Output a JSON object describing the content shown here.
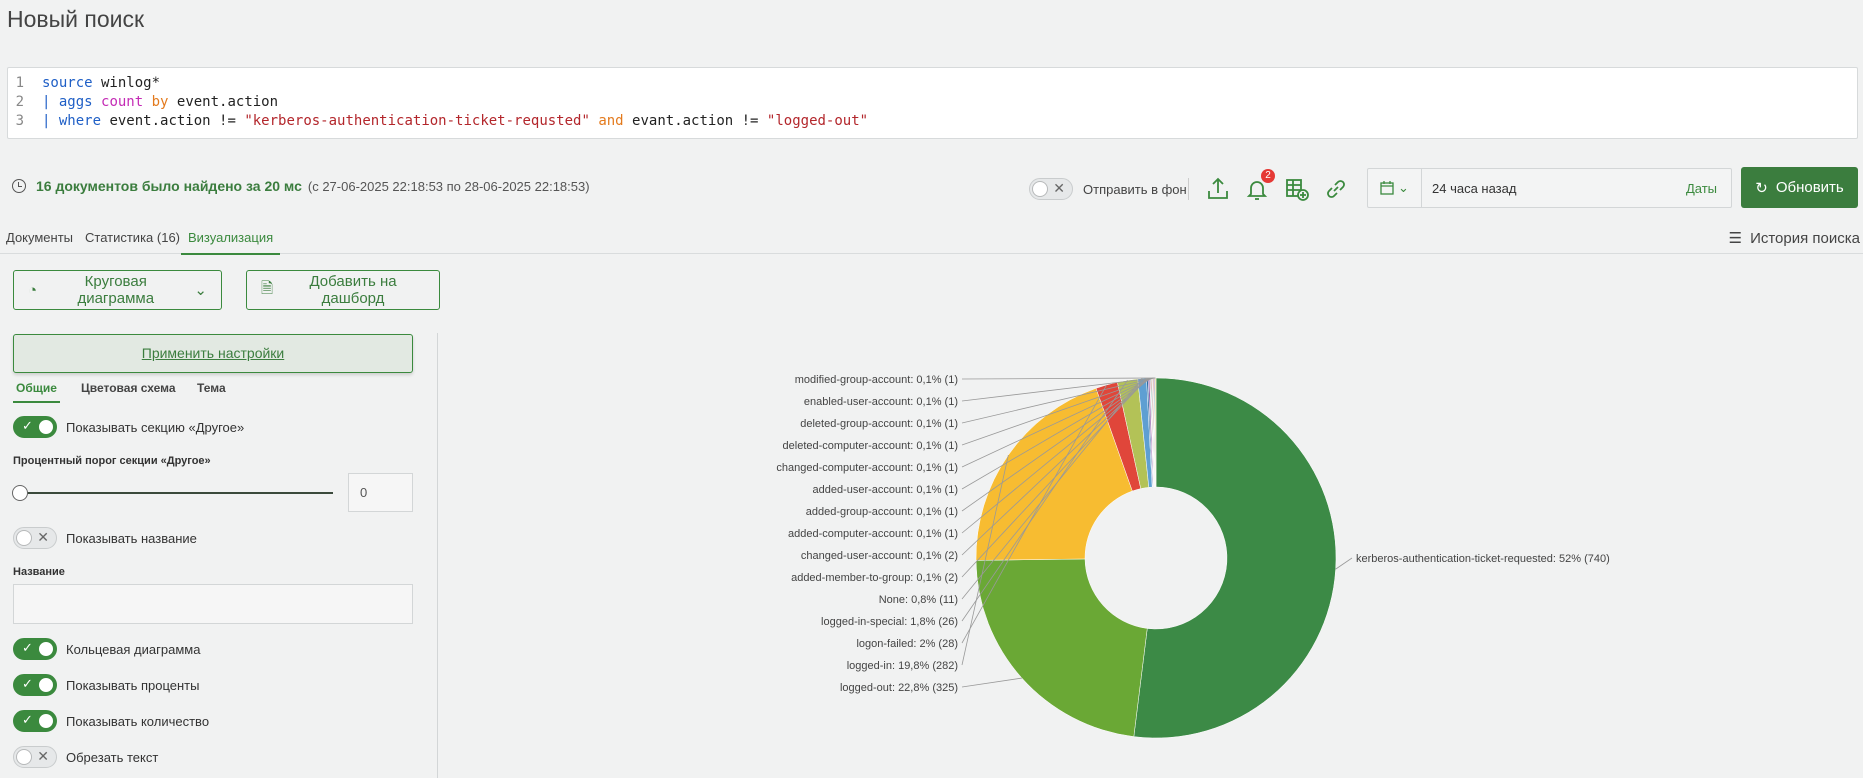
{
  "page": {
    "title": "Новый поиск"
  },
  "query": {
    "lines": [
      {
        "num": "1",
        "parts": [
          {
            "t": "source",
            "c": "kw-blue"
          },
          {
            "t": " winlog*",
            "c": "plain"
          }
        ]
      },
      {
        "num": "2",
        "parts": [
          {
            "t": "| ",
            "c": "pipe"
          },
          {
            "t": "aggs",
            "c": "kw-blue"
          },
          {
            "t": " ",
            "c": "plain"
          },
          {
            "t": "count",
            "c": "kw-mag"
          },
          {
            "t": " ",
            "c": "plain"
          },
          {
            "t": "by",
            "c": "kw-org"
          },
          {
            "t": " event.action",
            "c": "plain"
          }
        ]
      },
      {
        "num": "3",
        "parts": [
          {
            "t": "| ",
            "c": "pipe"
          },
          {
            "t": "where",
            "c": "kw-blue"
          },
          {
            "t": " event.action != ",
            "c": "plain"
          },
          {
            "t": "\"kerberos-authentication-ticket-requsted\"",
            "c": "str"
          },
          {
            "t": " ",
            "c": "plain"
          },
          {
            "t": "and",
            "c": "kw-org"
          },
          {
            "t": " evant.action != ",
            "c": "plain"
          },
          {
            "t": "\"logged-out\"",
            "c": "str"
          }
        ]
      }
    ]
  },
  "status": {
    "found": "16 документов было найдено за 20 мс",
    "range": "(с 27-06-2025 22:18:53 по 28-06-2025 22:18:53)"
  },
  "toolbar": {
    "send_background": "Отправить в фон",
    "notifications_count": "2",
    "date_value": "24 часа назад",
    "date_link": "Даты",
    "refresh": "Обновить"
  },
  "tabs": {
    "documents": "Документы",
    "statistics": "Статистика (16)",
    "visualization": "Визуализация",
    "history": "История поиска"
  },
  "viz": {
    "chart_type": "Круговая диаграмма",
    "add_dashboard": "Добавить на дашборд",
    "apply": "Применить настройки",
    "subtabs": {
      "general": "Общие",
      "colors": "Цветовая схема",
      "theme": "Тема"
    },
    "show_other": "Показывать секцию «Другое»",
    "threshold_label": "Процентный порог секции «Другое»",
    "threshold_value": "0",
    "show_name": "Показывать название",
    "name_label": "Название",
    "donut": "Кольцевая диаграмма",
    "show_percent": "Показывать проценты",
    "show_count": "Показывать количество",
    "trim_text": "Обрезать текст"
  },
  "chart_data": {
    "type": "pie",
    "donut": true,
    "slices": [
      {
        "label": "kerberos-authentication-ticket-requested",
        "value": 740,
        "text": "kerberos-authentication-ticket-requested: 52% (740)",
        "color": "#3c8a46"
      },
      {
        "label": "logged-out",
        "value": 325,
        "text": "logged-out: 22,8% (325)",
        "color": "#6aa835"
      },
      {
        "label": "logged-in",
        "value": 282,
        "text": "logged-in: 19,8% (282)",
        "color": "#f7bc31"
      },
      {
        "label": "logon-failed",
        "value": 28,
        "text": "logon-failed: 2% (28)",
        "color": "#e0463a"
      },
      {
        "label": "logged-in-special",
        "value": 26,
        "text": "logged-in-special: 1,8% (26)",
        "color": "#b3c257"
      },
      {
        "label": "None",
        "value": 11,
        "text": "None: 0,8% (11)",
        "color": "#5e9fd2"
      },
      {
        "label": "added-member-to-group",
        "value": 2,
        "text": "added-member-to-group: 0,1% (2)",
        "color": "#2c6aa0"
      },
      {
        "label": "changed-user-account",
        "value": 2,
        "text": "changed-user-account: 0,1% (2)",
        "color": "#8b5aa8"
      },
      {
        "label": "added-computer-account",
        "value": 1,
        "text": "added-computer-account: 0,1% (1)",
        "color": "#d35f8c"
      },
      {
        "label": "added-group-account",
        "value": 1,
        "text": "added-group-account: 0,1% (1)",
        "color": "#38a89d"
      },
      {
        "label": "added-user-account",
        "value": 1,
        "text": "added-user-account: 0,1% (1)",
        "color": "#a0522d"
      },
      {
        "label": "changed-computer-account",
        "value": 1,
        "text": "changed-computer-account: 0,1% (1)",
        "color": "#7f8c8d"
      },
      {
        "label": "deleted-computer-account",
        "value": 1,
        "text": "deleted-computer-account: 0,1% (1)",
        "color": "#c0392b"
      },
      {
        "label": "deleted-group-account",
        "value": 1,
        "text": "deleted-group-account: 0,1% (1)",
        "color": "#16a085"
      },
      {
        "label": "enabled-user-account",
        "value": 1,
        "text": "enabled-user-account: 0,1% (1)",
        "color": "#9b59b6"
      },
      {
        "label": "modified-group-account",
        "value": 1,
        "text": "modified-group-account: 0,1% (1)",
        "color": "#d4ac0d"
      }
    ]
  }
}
